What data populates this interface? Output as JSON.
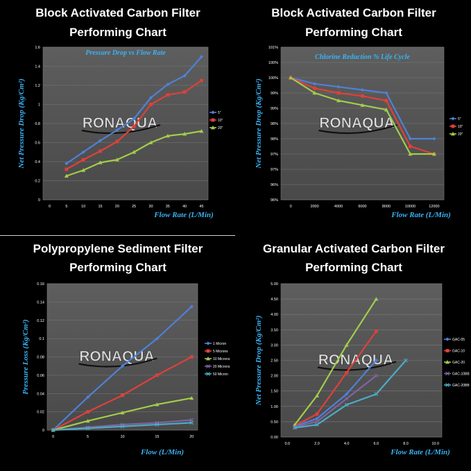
{
  "watermark": "RONAQUA",
  "chart_data": [
    {
      "type": "line",
      "title": "Block Activated Carbon Filter\nPerforming Chart",
      "subtitle": "Pressure Drop vs Flow Rate",
      "xlabel": "Flow Rate (L/Min)",
      "ylabel": "Net Pressure Drop (Kg/Cm²)",
      "x": [
        5,
        10,
        15,
        20,
        25,
        30,
        35,
        40,
        45
      ],
      "xticks": [
        "0",
        "5",
        "10",
        "15",
        "20",
        "25",
        "30",
        "35",
        "40",
        "45"
      ],
      "xlim": [
        0,
        45
      ],
      "ylim": [
        0,
        1.6
      ],
      "yticks": [
        "0",
        "0.2",
        "0.4",
        "0.6",
        "0.8",
        "1",
        "1.2",
        "1.4",
        "1.6"
      ],
      "legend_position": "right",
      "series": [
        {
          "name": "5\"",
          "color": "#4f81d8",
          "marker": "diamond",
          "values": [
            0.38,
            0.5,
            0.62,
            0.73,
            0.85,
            1.07,
            1.21,
            1.3,
            1.5
          ]
        },
        {
          "name": "10\"",
          "color": "#e0403a",
          "marker": "square",
          "values": [
            0.32,
            0.42,
            0.51,
            0.61,
            0.77,
            1.0,
            1.1,
            1.13,
            1.25
          ]
        },
        {
          "name": "20\"",
          "color": "#a3cc4a",
          "marker": "triangle",
          "values": [
            0.25,
            0.31,
            0.39,
            0.42,
            0.5,
            0.6,
            0.67,
            0.69,
            0.72
          ]
        }
      ]
    },
    {
      "type": "line",
      "title": "Block Activated Carbon Filter\nPerforming Chart",
      "subtitle": "Chlorine Reduction % Life Cycle",
      "xlabel": "Flow Rate (L/Min)",
      "ylabel": "Net Pressure Drop (Kg/Cm²)",
      "x": [
        0,
        2000,
        4000,
        6000,
        8000,
        10000,
        12000
      ],
      "xticks": [
        "0",
        "2000",
        "4000",
        "6000",
        "8000",
        "10000",
        "12000"
      ],
      "xlim": [
        0,
        12000
      ],
      "ylim": [
        96,
        101
      ],
      "yticks": [
        "96%",
        "96%",
        "97%",
        "97%",
        "98%",
        "98%",
        "99%",
        "99%",
        "100%",
        "100%",
        "101%"
      ],
      "legend_position": "right",
      "series": [
        {
          "name": "5\"",
          "color": "#4f81d8",
          "marker": "diamond",
          "values": [
            100,
            99.8,
            99.7,
            99.6,
            99.5,
            98,
            98
          ]
        },
        {
          "name": "10\"",
          "color": "#e0403a",
          "marker": "square",
          "values": [
            100,
            99.65,
            99.5,
            99.4,
            99.25,
            97.75,
            97.5
          ]
        },
        {
          "name": "20\"",
          "color": "#a3cc4a",
          "marker": "triangle",
          "values": [
            100,
            99.5,
            99.25,
            99.1,
            98.95,
            97.5,
            97.5
          ]
        }
      ]
    },
    {
      "type": "line",
      "title": "Polypropylene Sediment Filter\nPerforming Chart",
      "xlabel": "Flow (L/Min)",
      "ylabel": "Pressure Loss (Kg/Cm²)",
      "x": [
        0,
        5,
        10,
        15,
        20
      ],
      "xticks": [
        "0",
        "5",
        "10",
        "15",
        "20"
      ],
      "xlim": [
        0,
        20
      ],
      "ylim": [
        0,
        0.16
      ],
      "yticks": [
        "0",
        "0.02",
        "0.04",
        "0.06",
        "0.08",
        "0.1",
        "0.12",
        "0.14",
        "0.16"
      ],
      "legend_position": "right",
      "series": [
        {
          "name": "1 Micron",
          "color": "#4f81d8",
          "marker": "diamond",
          "values": [
            0,
            0.036,
            0.07,
            0.1,
            0.135
          ]
        },
        {
          "name": "5 Microns",
          "color": "#e0403a",
          "marker": "square",
          "values": [
            0,
            0.02,
            0.038,
            0.06,
            0.08
          ]
        },
        {
          "name": "10 Microns",
          "color": "#a3cc4a",
          "marker": "triangle",
          "values": [
            0,
            0.01,
            0.019,
            0.028,
            0.035
          ]
        },
        {
          "name": "20 Microns",
          "color": "#8064a2",
          "marker": "x",
          "values": [
            0,
            0.003,
            0.006,
            0.008,
            0.011
          ]
        },
        {
          "name": "50 Micron",
          "color": "#4bacc6",
          "marker": "x",
          "values": [
            0,
            0.002,
            0.004,
            0.006,
            0.008
          ]
        }
      ]
    },
    {
      "type": "line",
      "title": "Granular Activated Carbon Filter\nPerforming Chart",
      "xlabel": "Flow Rate (L/Min)",
      "ylabel": "Net Pressure Drop (Kg/Cm²)",
      "xticks": [
        "0.0",
        "2.0",
        "4.0",
        "6.0",
        "8.0",
        "10.0"
      ],
      "xlim": [
        0,
        10
      ],
      "ylim": [
        0,
        5
      ],
      "yticks": [
        "0.00",
        "0.50",
        "1.00",
        "1.50",
        "2.00",
        "2.50",
        "3.00",
        "3.50",
        "4.00",
        "4.50",
        "5.00"
      ],
      "legend_position": "right",
      "series": [
        {
          "name": "GAC-05",
          "color": "#4f81d8",
          "marker": "diamond",
          "x": [
            0.5,
            2,
            4,
            6
          ],
          "values": [
            0.35,
            0.6,
            1.4,
            2.5
          ]
        },
        {
          "name": "GAC-10",
          "color": "#e0403a",
          "marker": "square",
          "x": [
            0.5,
            2,
            4,
            6
          ],
          "values": [
            0.37,
            0.75,
            2.1,
            3.45
          ]
        },
        {
          "name": "GAC-20",
          "color": "#a3cc4a",
          "marker": "triangle",
          "x": [
            0.5,
            2,
            4,
            6
          ],
          "values": [
            0.4,
            1.35,
            3.0,
            4.5
          ]
        },
        {
          "name": "GAC-10BB",
          "color": "#8064a2",
          "marker": "x",
          "x": [
            0.5,
            2,
            4,
            6
          ],
          "values": [
            0.33,
            0.5,
            1.25,
            2.0
          ]
        },
        {
          "name": "GAC-20BB",
          "color": "#4bacc6",
          "marker": "x",
          "x": [
            0.5,
            2,
            4,
            6,
            8
          ],
          "values": [
            0.3,
            0.4,
            1.05,
            1.4,
            2.5
          ]
        }
      ]
    }
  ]
}
